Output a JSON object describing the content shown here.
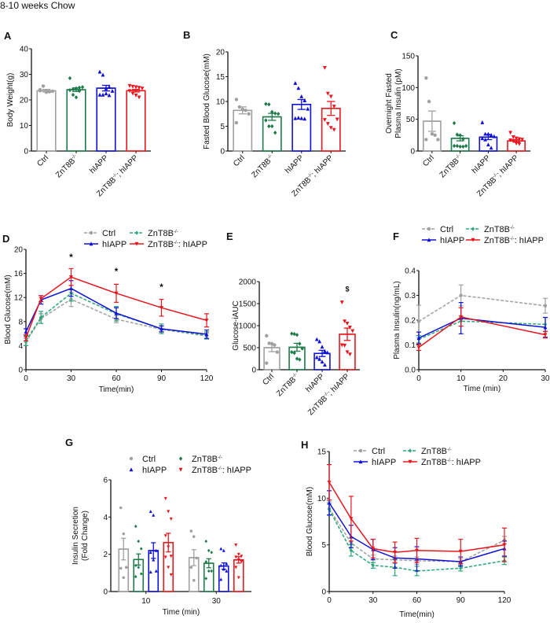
{
  "title": "8-10 weeks Chow",
  "colors": {
    "Ctrl": "#a0a0a0",
    "ZnT8B-/-": "#1e7a4a",
    "hIAPP": "#1010d8",
    "ZnT8B-/-: hIAPP": "#e8161e",
    "ZnT8B-/-_line": "#2aa87a",
    "axis": "#111111"
  },
  "groups": [
    "Ctrl",
    "ZnT8B-/-",
    "hIAPP",
    "ZnT8B-/-: hIAPP"
  ],
  "chart_data": [
    {
      "panel": "A",
      "type": "bar",
      "title": "",
      "ylabel": "Body Weight(g)",
      "xlabel": "",
      "ylim": [
        0,
        40
      ],
      "yticks": [
        0,
        10,
        20,
        30,
        40
      ],
      "categories": [
        "Ctrl",
        "ZnT8B-/-",
        "hIAPP",
        "ZnT8B-/-; hIAPP"
      ],
      "values": [
        23.6,
        24.0,
        24.6,
        23.6
      ],
      "sem": [
        0.5,
        0.7,
        1.1,
        0.5
      ],
      "points": [
        [
          24.0,
          25.4,
          23.0,
          23.2,
          23.4,
          23.6
        ],
        [
          28.5,
          24.2,
          24.5,
          24.8,
          25.0,
          23.8,
          22.0,
          21.0,
          23.5
        ],
        [
          31.0,
          29.8,
          24.5,
          25.0,
          23.5,
          22.0,
          22.0,
          22.5,
          21.8
        ],
        [
          25.5,
          25.2,
          25.0,
          24.8,
          24.5,
          23.5,
          22.5,
          21.8,
          21.0
        ]
      ],
      "markers": [
        "circle",
        "diamond",
        "triangle-up",
        "triangle-down"
      ]
    },
    {
      "panel": "B",
      "type": "bar",
      "title": "",
      "ylabel": "Fasted Blood Glucose(mM)",
      "xlabel": "",
      "ylim": [
        0,
        20
      ],
      "yticks": [
        0,
        5,
        10,
        15,
        20
      ],
      "categories": [
        "Ctrl",
        "ZnT8B-/-",
        "hIAPP",
        "ZnT8B-/-; hIAPP"
      ],
      "values": [
        8.2,
        6.9,
        9.4,
        8.6
      ],
      "sem": [
        0.7,
        0.7,
        1.0,
        1.4
      ],
      "points": [
        [
          10.4,
          8.9,
          8.4,
          8.2,
          7.5,
          5.7
        ],
        [
          9.5,
          9.4,
          7.9,
          7.6,
          7.5,
          6.2,
          5.0,
          5.0,
          3.7
        ],
        [
          13.7,
          12.7,
          11.0,
          10.2,
          8.5,
          6.6,
          6.7,
          6.6,
          6.5
        ],
        [
          16.8,
          11.6,
          11.0,
          9.0,
          6.4,
          6.3,
          5.5,
          4.7,
          4.3
        ]
      ],
      "markers": [
        "circle",
        "diamond",
        "triangle-up",
        "triangle-down"
      ]
    },
    {
      "panel": "C",
      "type": "bar",
      "title": "",
      "ylabel": "Overnight Fasted Plasma Insulin (pM)",
      "xlabel": "",
      "ylim": [
        0,
        150
      ],
      "yticks": [
        0,
        50,
        100,
        150
      ],
      "categories": [
        "Ctrl",
        "ZnT8B-/-",
        "hIAPP",
        "ZnT8B-/-; hIAPP"
      ],
      "values": [
        47,
        20,
        22,
        16
      ],
      "sem": [
        16,
        4,
        4,
        2
      ],
      "points": [
        [
          115,
          78,
          27,
          25,
          18,
          18
        ],
        [
          44,
          26,
          25,
          19,
          8,
          8,
          8,
          7,
          7
        ],
        [
          45,
          27,
          27,
          25,
          23,
          20,
          18,
          10,
          5
        ],
        [
          29,
          22,
          20,
          19,
          18,
          17,
          16,
          12,
          11
        ]
      ],
      "markers": [
        "circle",
        "diamond",
        "triangle-up",
        "triangle-down"
      ]
    },
    {
      "panel": "D",
      "type": "line",
      "title": "",
      "ylabel": "Blood Glucose(mM)",
      "xlabel": "Time(min)",
      "ylim": [
        0,
        20
      ],
      "yticks": [
        0,
        4,
        8,
        12,
        16,
        20
      ],
      "xlim": [
        0,
        120
      ],
      "xticks": [
        0,
        30,
        60,
        90,
        120
      ],
      "x": [
        0,
        10,
        30,
        60,
        90,
        120
      ],
      "legend": "top",
      "annotations": [
        {
          "x": 30,
          "y": 18.2,
          "text": "*"
        },
        {
          "x": 60,
          "y": 15.8,
          "text": "*"
        },
        {
          "x": 90,
          "y": 13.2,
          "text": "*"
        }
      ],
      "series": [
        {
          "name": "Ctrl",
          "values": [
            4.6,
            8.5,
            11.7,
            8.4,
            6.7,
            5.6
          ],
          "sem": [
            0.6,
            0.8,
            1.2,
            0.6,
            0.5,
            0.5
          ],
          "dashed": true,
          "marker": "circle"
        },
        {
          "name": "ZnT8B-/-",
          "values": [
            4.8,
            8.7,
            12.7,
            9.3,
            6.8,
            5.7
          ],
          "sem": [
            0.8,
            1.0,
            1.3,
            1.2,
            0.8,
            0.6
          ],
          "dashed": true,
          "marker": "diamond"
        },
        {
          "name": "hIAPP",
          "values": [
            6.3,
            11.6,
            13.5,
            9.4,
            6.8,
            5.9
          ],
          "sem": [
            0.5,
            0.7,
            1.3,
            0.9,
            0.5,
            0.7
          ],
          "dashed": false,
          "marker": "triangle-up"
        },
        {
          "name": "ZnT8B-/-: hIAPP",
          "values": [
            5.3,
            11.8,
            15.4,
            12.7,
            10.3,
            8.2
          ],
          "sem": [
            0.5,
            0.5,
            1.4,
            1.5,
            1.4,
            1.1
          ],
          "dashed": false,
          "marker": "triangle-down"
        }
      ]
    },
    {
      "panel": "E",
      "type": "bar",
      "title": "",
      "ylabel": "Glucose-iAUC",
      "xlabel": "",
      "ylim": [
        0,
        2000
      ],
      "yticks": [
        0,
        500,
        1000,
        1500,
        2000
      ],
      "categories": [
        "Ctrl",
        "ZnT8B-/-",
        "hIAPP",
        "ZnT8B-/-; hIAPP"
      ],
      "values": [
        500,
        510,
        370,
        805
      ],
      "sem": [
        90,
        90,
        70,
        140
      ],
      "points": [
        [
          770,
          600,
          590,
          560,
          400,
          150
        ],
        [
          820,
          810,
          790,
          590,
          480,
          400,
          380,
          250,
          230
        ],
        [
          690,
          640,
          520,
          420,
          390,
          280,
          240,
          180,
          110
        ],
        [
          1530,
          1100,
          1050,
          960,
          880,
          560,
          550,
          400,
          350
        ]
      ],
      "markers": [
        "circle",
        "diamond",
        "triangle-up",
        "triangle-down"
      ],
      "annotations": [
        {
          "category": 3,
          "y": 1780,
          "text": "$"
        }
      ]
    },
    {
      "panel": "F",
      "type": "line",
      "title": "",
      "ylabel": "Plasma Insulin(ng/mL)",
      "xlabel": "Time (min)",
      "ylim": [
        0,
        0.4
      ],
      "yticks": [
        0.0,
        0.1,
        0.2,
        0.3,
        0.4
      ],
      "xlim": [
        0,
        30
      ],
      "xticks": [
        0,
        10,
        20,
        30
      ],
      "x": [
        0,
        10,
        30
      ],
      "legend": "top",
      "series": [
        {
          "name": "Ctrl",
          "values": [
            0.195,
            0.3,
            0.258
          ],
          "sem": [
            0.065,
            0.042,
            0.03
          ],
          "dashed": true,
          "marker": "circle"
        },
        {
          "name": "ZnT8B-/-",
          "values": [
            0.123,
            0.196,
            0.183
          ],
          "sem": [
            0.015,
            0.02,
            0.028
          ],
          "dashed": true,
          "marker": "diamond"
        },
        {
          "name": "hIAPP",
          "values": [
            0.128,
            0.208,
            0.171
          ],
          "sem": [
            0.024,
            0.063,
            0.04
          ],
          "dashed": false,
          "marker": "triangle-up"
        },
        {
          "name": "ZnT8B-/-: hIAPP",
          "values": [
            0.09,
            0.213,
            0.141
          ],
          "sem": [
            0.012,
            0.037,
            0.013
          ],
          "dashed": false,
          "marker": "triangle-down"
        }
      ]
    },
    {
      "panel": "G",
      "type": "bar",
      "title": "",
      "ylabel": "Insulin Secretion (Fold Change)",
      "xlabel": "Time (min)",
      "ylim": [
        0,
        6
      ],
      "yticks": [
        0,
        2,
        4,
        6
      ],
      "categories": [
        "10",
        "30"
      ],
      "legend": "top",
      "series": [
        {
          "name": "Ctrl",
          "values": [
            2.28,
            1.82
          ],
          "sem": [
            0.58,
            0.43
          ],
          "points": [
            [
              4.5,
              3.1,
              1.3,
              1.25,
              0.75
            ],
            [
              3.25,
              2.95,
              1.8,
              1.3,
              0.6
            ]
          ],
          "marker": "circle"
        },
        {
          "name": "ZnT8B-/-",
          "values": [
            1.72,
            1.52
          ],
          "sem": [
            0.3,
            0.24
          ],
          "points": [
            [
              3.5,
              2.7,
              2.3,
              1.4,
              1.3,
              0.95,
              0.8
            ],
            [
              2.7,
              2.2,
              2.1,
              1.6,
              1.1,
              1.1,
              0.7
            ]
          ],
          "marker": "diamond"
        },
        {
          "name": "hIAPP",
          "values": [
            2.2,
            1.37
          ],
          "sem": [
            0.42,
            0.17
          ],
          "points": [
            [
              4.3,
              4.1,
              2.2,
              2.1,
              1.7,
              1.1,
              1.05
            ],
            [
              2.3,
              2.2,
              1.5,
              1.4,
              1.2,
              1.1,
              0.65
            ]
          ],
          "marker": "triangle-up"
        },
        {
          "name": "ZnT8B-/-: hIAPP",
          "values": [
            2.63,
            1.7
          ],
          "sem": [
            0.5,
            0.17
          ],
          "points": [
            [
              5.0,
              4.3,
              3.9,
              3.0,
              2.4,
              1.9,
              1.85,
              1.3,
              0.9
            ],
            [
              2.5,
              2.0,
              1.9,
              1.85,
              1.7,
              1.6,
              1.3,
              0.75
            ]
          ],
          "marker": "triangle-down"
        }
      ]
    },
    {
      "panel": "H",
      "type": "line",
      "title": "",
      "ylabel": "Blood Glucose(mM)",
      "xlabel": "Time(min)",
      "ylim": [
        0,
        15
      ],
      "yticks": [
        0,
        5,
        10,
        15
      ],
      "xlim": [
        0,
        120
      ],
      "xticks": [
        0,
        30,
        60,
        90,
        120
      ],
      "x": [
        0,
        15,
        30,
        45,
        60,
        90,
        120
      ],
      "legend": "top",
      "series": [
        {
          "name": "Ctrl",
          "values": [
            8.9,
            5.2,
            3.5,
            3.4,
            3.3,
            3.2,
            5.5
          ],
          "sem": [
            0.7,
            0.5,
            0.4,
            0.4,
            0.4,
            0.3,
            0.4
          ],
          "dashed": true,
          "marker": "circle"
        },
        {
          "name": "ZnT8B-/-",
          "values": [
            8.8,
            4.4,
            2.8,
            2.6,
            2.2,
            2.5,
            3.3
          ],
          "sem": [
            0.6,
            0.6,
            0.3,
            0.9,
            0.5,
            0.3,
            0.4
          ],
          "dashed": true,
          "marker": "diamond"
        },
        {
          "name": "hIAPP",
          "values": [
            9.5,
            5.9,
            4.5,
            3.6,
            3.5,
            3.2,
            4.6
          ],
          "sem": [
            1.3,
            1.2,
            1.1,
            1.1,
            1.3,
            0.5,
            0.8
          ],
          "dashed": false,
          "marker": "triangle-up"
        },
        {
          "name": "ZnT8B-/-: hIAPP",
          "values": [
            11.7,
            7.8,
            4.6,
            4.2,
            4.4,
            4.3,
            5.0
          ],
          "sem": [
            1.9,
            2.4,
            1.0,
            1.1,
            1.3,
            1.3,
            1.8
          ],
          "dashed": false,
          "marker": "triangle-down"
        }
      ]
    }
  ]
}
